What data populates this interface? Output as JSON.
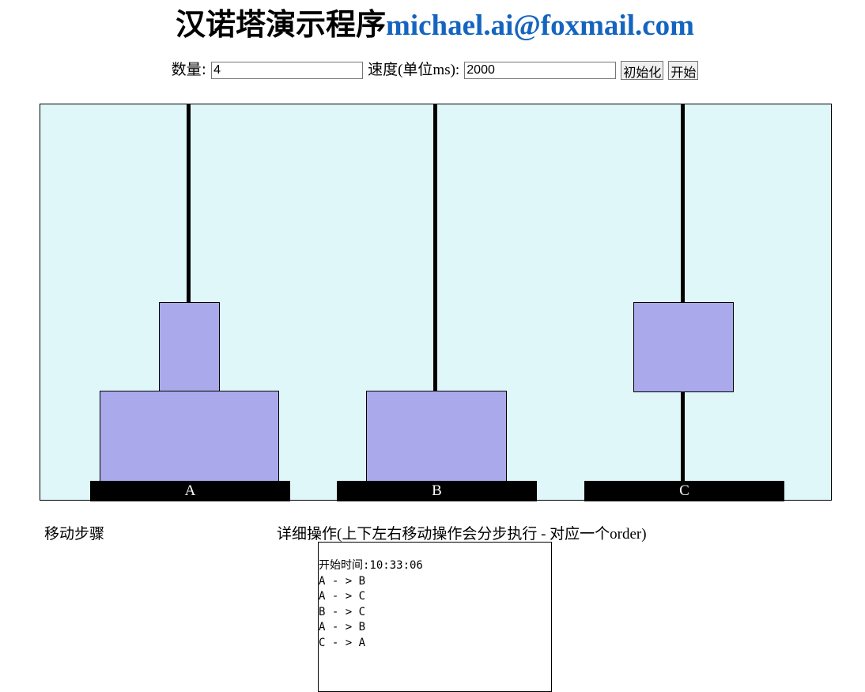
{
  "header": {
    "title_text": "汉诺塔演示程序",
    "title_email": "michael.ai@foxmail.com"
  },
  "controls": {
    "count_label": "数量:",
    "count_value": "4",
    "speed_label": "速度(单位ms):",
    "speed_value": "2000",
    "init_button": "初始化",
    "start_button": "开始"
  },
  "stage": {
    "colors": {
      "background": "#e0f7fa",
      "disk": "#aaa9eb",
      "rod": "#000000",
      "email": "#1565c0"
    },
    "towers": [
      {
        "label": "A"
      },
      {
        "label": "B"
      },
      {
        "label": "C"
      }
    ]
  },
  "bottom": {
    "steps_label": "移动步骤",
    "detail_label": "详细操作(上下左右移动操作会分步执行 - 对应一个order)",
    "log_lines": [
      "开始时间:10:33:06",
      "A - > B",
      "A - > C",
      "B - > C",
      "A - > B",
      "C - > A"
    ]
  }
}
